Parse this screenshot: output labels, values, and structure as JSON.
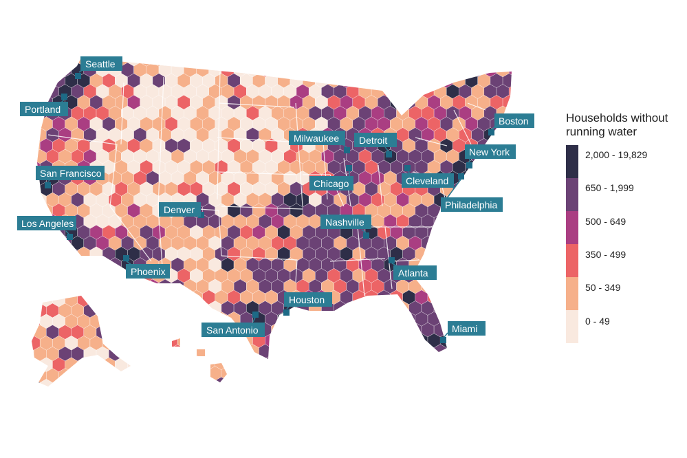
{
  "legend": {
    "title_line1": "Households without",
    "title_line2": "running water",
    "items": [
      {
        "label": "2,000 - 19,829",
        "color": "#2e2e48"
      },
      {
        "label": "650 - 1,999",
        "color": "#6b4275"
      },
      {
        "label": "500 - 649",
        "color": "#aa3e82"
      },
      {
        "label": "350 - 499",
        "color": "#ec6466"
      },
      {
        "label": "50 - 349",
        "color": "#f6b08a"
      },
      {
        "label": "0 - 49",
        "color": "#f9e9df"
      }
    ]
  },
  "cities": {
    "seattle": "Seattle",
    "portland": "Portland",
    "san_francisco": "San Francisco",
    "los_angeles": "Los Angeles",
    "phoenix": "Phoenix",
    "denver": "Denver",
    "san_antonio": "San Antonio",
    "houston": "Houston",
    "nashville": "Nashville",
    "chicago": "Chicago",
    "milwaukee": "Milwaukee",
    "detroit": "Detroit",
    "cleveland": "Cleveland",
    "atlanta": "Atlanta",
    "miami": "Miami",
    "philadelphia": "Philadelphia",
    "new_york": "New York",
    "boston": "Boston"
  },
  "colors": {
    "city_label_bg": "#2c7d94",
    "city_marker": "#1d6a86",
    "state_border": "#ffffff"
  }
}
